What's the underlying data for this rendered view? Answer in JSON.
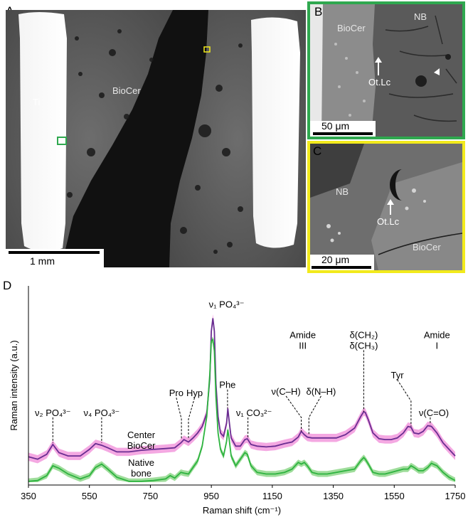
{
  "panels": {
    "a": {
      "letter": "A",
      "labels": {
        "ti": "Ti",
        "biocer": "BioCer"
      },
      "scalebar": "1 mm"
    },
    "b": {
      "letter": "B",
      "labels": {
        "biocer": "BioCer",
        "nb": "NB",
        "otlc": "Ot.Lc"
      },
      "scalebar": "50 μm",
      "border_color": "#2fa84f"
    },
    "c": {
      "letter": "C",
      "labels": {
        "nb": "NB",
        "otlc": "Ot.Lc",
        "biocer": "BioCer"
      },
      "scalebar": "20 μm",
      "border_color": "#f2ea1c"
    },
    "d": {
      "letter": "D"
    }
  },
  "chart_data": {
    "type": "line",
    "title": "",
    "xlabel": "Raman shift (cm⁻¹)",
    "ylabel": "Raman intensity (a.u.)",
    "xlim": [
      350,
      1750
    ],
    "ylim": [
      0,
      1
    ],
    "xticks": [
      350,
      550,
      750,
      950,
      1150,
      1350,
      1550,
      1750
    ],
    "grid": false,
    "series": [
      {
        "name": "Center BioCer",
        "color": "#6a2d91",
        "band_color": "#f08bd8",
        "x": [
          350,
          380,
          410,
          430,
          450,
          480,
          520,
          550,
          570,
          590,
          610,
          640,
          680,
          720,
          760,
          800,
          830,
          850,
          860,
          875,
          890,
          905,
          920,
          935,
          945,
          950,
          955,
          960,
          965,
          972,
          980,
          990,
          1000,
          1004,
          1008,
          1015,
          1030,
          1045,
          1060,
          1068,
          1080,
          1100,
          1130,
          1160,
          1190,
          1215,
          1235,
          1245,
          1255,
          1265,
          1280,
          1300,
          1330,
          1360,
          1390,
          1420,
          1440,
          1450,
          1455,
          1465,
          1480,
          1500,
          1520,
          1540,
          1560,
          1580,
          1595,
          1605,
          1615,
          1630,
          1645,
          1660,
          1672,
          1690,
          1710,
          1730,
          1750
        ],
        "y": [
          0.155,
          0.14,
          0.17,
          0.23,
          0.18,
          0.16,
          0.16,
          0.2,
          0.235,
          0.225,
          0.21,
          0.185,
          0.185,
          0.195,
          0.2,
          0.205,
          0.21,
          0.24,
          0.26,
          0.245,
          0.27,
          0.3,
          0.34,
          0.42,
          0.63,
          0.92,
          1.0,
          0.92,
          0.6,
          0.4,
          0.3,
          0.28,
          0.36,
          0.45,
          0.38,
          0.27,
          0.22,
          0.22,
          0.26,
          0.265,
          0.23,
          0.22,
          0.215,
          0.22,
          0.235,
          0.245,
          0.275,
          0.31,
          0.29,
          0.275,
          0.27,
          0.27,
          0.27,
          0.27,
          0.29,
          0.33,
          0.4,
          0.43,
          0.425,
          0.38,
          0.3,
          0.265,
          0.26,
          0.26,
          0.27,
          0.3,
          0.34,
          0.335,
          0.3,
          0.295,
          0.31,
          0.345,
          0.34,
          0.3,
          0.24,
          0.2,
          0.16
        ]
      },
      {
        "name": "Native bone",
        "color": "#2db33f",
        "band_color": "#7fd17a",
        "x": [
          350,
          380,
          410,
          430,
          450,
          480,
          500,
          520,
          550,
          570,
          590,
          610,
          640,
          680,
          720,
          760,
          800,
          815,
          830,
          850,
          860,
          875,
          890,
          905,
          920,
          935,
          945,
          950,
          955,
          960,
          965,
          972,
          980,
          990,
          1000,
          1004,
          1008,
          1015,
          1030,
          1045,
          1060,
          1068,
          1080,
          1100,
          1130,
          1160,
          1190,
          1215,
          1235,
          1245,
          1255,
          1265,
          1280,
          1300,
          1330,
          1360,
          1390,
          1420,
          1440,
          1450,
          1455,
          1465,
          1480,
          1500,
          1520,
          1540,
          1560,
          1580,
          1595,
          1605,
          1615,
          1630,
          1645,
          1660,
          1672,
          1690,
          1710,
          1730,
          1750
        ],
        "y": [
          0.005,
          0.01,
          0.04,
          0.1,
          0.085,
          0.05,
          0.035,
          0.02,
          0.04,
          0.09,
          0.11,
          0.08,
          0.03,
          0.005,
          0.005,
          0.01,
          0.02,
          0.04,
          0.025,
          0.06,
          0.055,
          0.05,
          0.09,
          0.13,
          0.22,
          0.4,
          0.66,
          0.86,
          0.87,
          0.8,
          0.52,
          0.3,
          0.2,
          0.16,
          0.25,
          0.32,
          0.27,
          0.16,
          0.1,
          0.14,
          0.18,
          0.17,
          0.1,
          0.06,
          0.05,
          0.05,
          0.06,
          0.08,
          0.12,
          0.11,
          0.12,
          0.1,
          0.06,
          0.05,
          0.05,
          0.06,
          0.07,
          0.08,
          0.13,
          0.15,
          0.14,
          0.11,
          0.06,
          0.05,
          0.05,
          0.06,
          0.07,
          0.08,
          0.08,
          0.1,
          0.09,
          0.07,
          0.07,
          0.09,
          0.115,
          0.1,
          0.06,
          0.03,
          0.01
        ]
      }
    ],
    "annotations": [
      {
        "x": 430,
        "label": "ν₂ PO₄³⁻",
        "lines": [
          "ν₂ PO₄³⁻"
        ]
      },
      {
        "x": 590,
        "label": "ν₄ PO₄³⁻",
        "lines": [
          "ν₄ PO₄³⁻"
        ]
      },
      {
        "x": 852,
        "label": "Pro",
        "lines": [
          "Pro"
        ]
      },
      {
        "x": 875,
        "label": "Hyp",
        "lines": [
          "Hyp"
        ]
      },
      {
        "x": 959,
        "label": "ν₁ PO₄³⁻",
        "lines": [
          "ν₁ PO₄³⁻"
        ]
      },
      {
        "x": 1003,
        "label": "Phe",
        "lines": [
          "Phe"
        ]
      },
      {
        "x": 1070,
        "label": "ν₁ CO₃²⁻",
        "lines": [
          "ν₁ CO₃²⁻"
        ]
      },
      {
        "x": 1245,
        "label": "ν(C–H)",
        "lines": [
          "ν(C–H)"
        ]
      },
      {
        "x": 1270,
        "label": "δ(N–H)",
        "lines": [
          "δ(N–H)"
        ]
      },
      {
        "x": 1250,
        "label": "Amide III",
        "lines": [
          "Amide",
          "III"
        ]
      },
      {
        "x": 1450,
        "label": "δ(CH₂) δ(CH₃)",
        "lines": [
          "δ(CH₂)",
          "δ(CH₃)"
        ]
      },
      {
        "x": 1605,
        "label": "Tyr",
        "lines": [
          "Tyr"
        ]
      },
      {
        "x": 1668,
        "label": "ν(C=O)",
        "lines": [
          "ν(C=O)"
        ]
      },
      {
        "x": 1668,
        "label": "Amide I",
        "lines": [
          "Amide",
          "I"
        ]
      }
    ],
    "series_labels": {
      "center": [
        "Center",
        "BioCer"
      ],
      "native": [
        "Native",
        "bone"
      ]
    }
  }
}
